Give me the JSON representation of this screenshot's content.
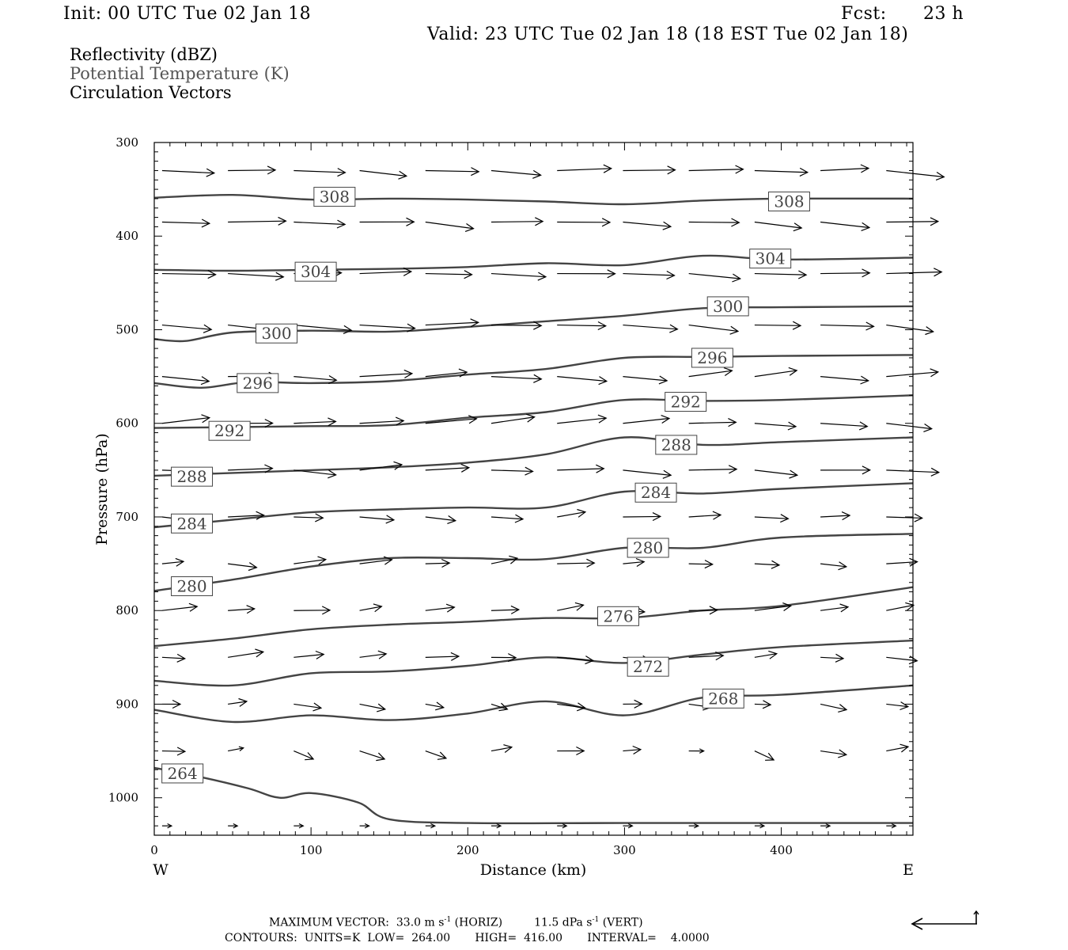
{
  "header": {
    "init": "Init: 00 UTC Tue 02 Jan 18",
    "fcst_label": "Fcst:",
    "fcst_value": "23 h",
    "valid": "Valid: 23 UTC Tue 02 Jan 18 (18 EST Tue 02 Jan 18)"
  },
  "legend": {
    "field1": "Reflectivity (dBZ)",
    "field2": "Potential Temperature (K)",
    "field3": "Circulation Vectors"
  },
  "footer": {
    "line1_a": "MAXIMUM VECTOR:  33.0 m s",
    "line1_sup1": "-1",
    "line1_b": " (HORIZ)         11.5 dPa s",
    "line1_sup2": "-1",
    "line1_c": " (VERT)",
    "line2": "CONTOURS:  UNITS=K  LOW=  264.00       HIGH=  416.00       INTERVAL=    4.0000"
  },
  "colors": {
    "contour": "#444444",
    "contour_label": "#444444",
    "vectors": "#000000",
    "axes": "#000000"
  },
  "chart_data": {
    "type": "line",
    "title": "",
    "xlabel": "Distance (km)",
    "ylabel": "Pressure (hPa)",
    "x_left_label": "W",
    "x_right_label": "E",
    "xlim": [
      0,
      484
    ],
    "ylim": [
      1040,
      300
    ],
    "y_axis_inverted": true,
    "xticks": [
      0,
      100,
      200,
      300,
      400
    ],
    "yticks": [
      300,
      400,
      500,
      600,
      700,
      800,
      900,
      1000
    ],
    "contour_interval_K": 4,
    "contours": [
      {
        "level": 308,
        "label_positions": [
          [
            115,
            358
          ],
          [
            405,
            363
          ]
        ],
        "points": [
          [
            0,
            359
          ],
          [
            50,
            356
          ],
          [
            100,
            361
          ],
          [
            150,
            360
          ],
          [
            200,
            361
          ],
          [
            250,
            363
          ],
          [
            300,
            366
          ],
          [
            350,
            362
          ],
          [
            400,
            360
          ],
          [
            484,
            360
          ]
        ]
      },
      {
        "level": 304,
        "label_positions": [
          [
            103,
            438
          ],
          [
            393,
            424
          ]
        ],
        "points": [
          [
            0,
            436
          ],
          [
            50,
            437
          ],
          [
            100,
            436
          ],
          [
            150,
            435
          ],
          [
            200,
            433
          ],
          [
            250,
            429
          ],
          [
            300,
            431
          ],
          [
            350,
            421
          ],
          [
            400,
            425
          ],
          [
            484,
            423
          ]
        ]
      },
      {
        "level": 300,
        "label_positions": [
          [
            78,
            504
          ],
          [
            366,
            475
          ]
        ],
        "points": [
          [
            0,
            510
          ],
          [
            20,
            512
          ],
          [
            50,
            503
          ],
          [
            100,
            501
          ],
          [
            150,
            502
          ],
          [
            200,
            497
          ],
          [
            250,
            491
          ],
          [
            300,
            485
          ],
          [
            350,
            477
          ],
          [
            400,
            476
          ],
          [
            484,
            475
          ]
        ]
      },
      {
        "level": 296,
        "label_positions": [
          [
            66,
            557
          ],
          [
            356,
            530
          ]
        ],
        "points": [
          [
            0,
            557
          ],
          [
            30,
            562
          ],
          [
            60,
            556
          ],
          [
            100,
            557
          ],
          [
            150,
            555
          ],
          [
            200,
            548
          ],
          [
            250,
            542
          ],
          [
            300,
            530
          ],
          [
            350,
            529
          ],
          [
            400,
            528
          ],
          [
            484,
            527
          ]
        ]
      },
      {
        "level": 292,
        "label_positions": [
          [
            48,
            608
          ],
          [
            339,
            577
          ]
        ],
        "points": [
          [
            0,
            605
          ],
          [
            50,
            604
          ],
          [
            100,
            603
          ],
          [
            150,
            602
          ],
          [
            200,
            594
          ],
          [
            250,
            588
          ],
          [
            300,
            575
          ],
          [
            350,
            576
          ],
          [
            400,
            575
          ],
          [
            484,
            570
          ]
        ]
      },
      {
        "level": 288,
        "label_positions": [
          [
            24,
            657
          ],
          [
            333,
            623
          ]
        ],
        "points": [
          [
            0,
            656
          ],
          [
            50,
            653
          ],
          [
            100,
            650
          ],
          [
            150,
            647
          ],
          [
            200,
            642
          ],
          [
            250,
            633
          ],
          [
            300,
            615
          ],
          [
            350,
            623
          ],
          [
            400,
            620
          ],
          [
            484,
            615
          ]
        ]
      },
      {
        "level": 284,
        "label_positions": [
          [
            24,
            707
          ],
          [
            320,
            674
          ]
        ],
        "points": [
          [
            0,
            711
          ],
          [
            50,
            703
          ],
          [
            100,
            695
          ],
          [
            150,
            692
          ],
          [
            200,
            690
          ],
          [
            250,
            690
          ],
          [
            300,
            673
          ],
          [
            350,
            675
          ],
          [
            400,
            670
          ],
          [
            484,
            664
          ]
        ]
      },
      {
        "level": 280,
        "label_positions": [
          [
            24,
            774
          ],
          [
            315,
            733
          ]
        ],
        "points": [
          [
            0,
            779
          ],
          [
            50,
            767
          ],
          [
            100,
            753
          ],
          [
            150,
            744
          ],
          [
            200,
            744
          ],
          [
            250,
            745
          ],
          [
            300,
            733
          ],
          [
            350,
            733
          ],
          [
            400,
            722
          ],
          [
            484,
            718
          ]
        ]
      },
      {
        "level": 276,
        "label_positions": [
          [
            296,
            806
          ]
        ],
        "points": [
          [
            0,
            838
          ],
          [
            50,
            830
          ],
          [
            100,
            820
          ],
          [
            150,
            815
          ],
          [
            200,
            812
          ],
          [
            250,
            808
          ],
          [
            300,
            808
          ],
          [
            350,
            800
          ],
          [
            400,
            795
          ],
          [
            484,
            775
          ]
        ]
      },
      {
        "level": 272,
        "label_positions": [
          [
            315,
            860
          ]
        ],
        "points": [
          [
            0,
            875
          ],
          [
            50,
            880
          ],
          [
            100,
            867
          ],
          [
            150,
            865
          ],
          [
            200,
            859
          ],
          [
            250,
            850
          ],
          [
            300,
            856
          ],
          [
            350,
            847
          ],
          [
            400,
            839
          ],
          [
            484,
            832
          ]
        ]
      },
      {
        "level": 268,
        "label_positions": [
          [
            363,
            894
          ]
        ],
        "points": [
          [
            0,
            906
          ],
          [
            50,
            919
          ],
          [
            100,
            912
          ],
          [
            150,
            917
          ],
          [
            200,
            910
          ],
          [
            250,
            897
          ],
          [
            300,
            912
          ],
          [
            350,
            893
          ],
          [
            400,
            890
          ],
          [
            484,
            880
          ]
        ]
      },
      {
        "level": 264,
        "label_positions": [
          [
            18,
            974
          ]
        ],
        "points": [
          [
            0,
            968
          ],
          [
            30,
            978
          ],
          [
            60,
            990
          ],
          [
            80,
            1000
          ],
          [
            100,
            995
          ],
          [
            130,
            1005
          ],
          [
            150,
            1023
          ],
          [
            200,
            1027
          ],
          [
            300,
            1027
          ],
          [
            484,
            1027
          ]
        ]
      }
    ],
    "vector_scale": {
      "horizontal": "33.0 m s-1",
      "vertical": "11.5 dPa s-1"
    }
  }
}
